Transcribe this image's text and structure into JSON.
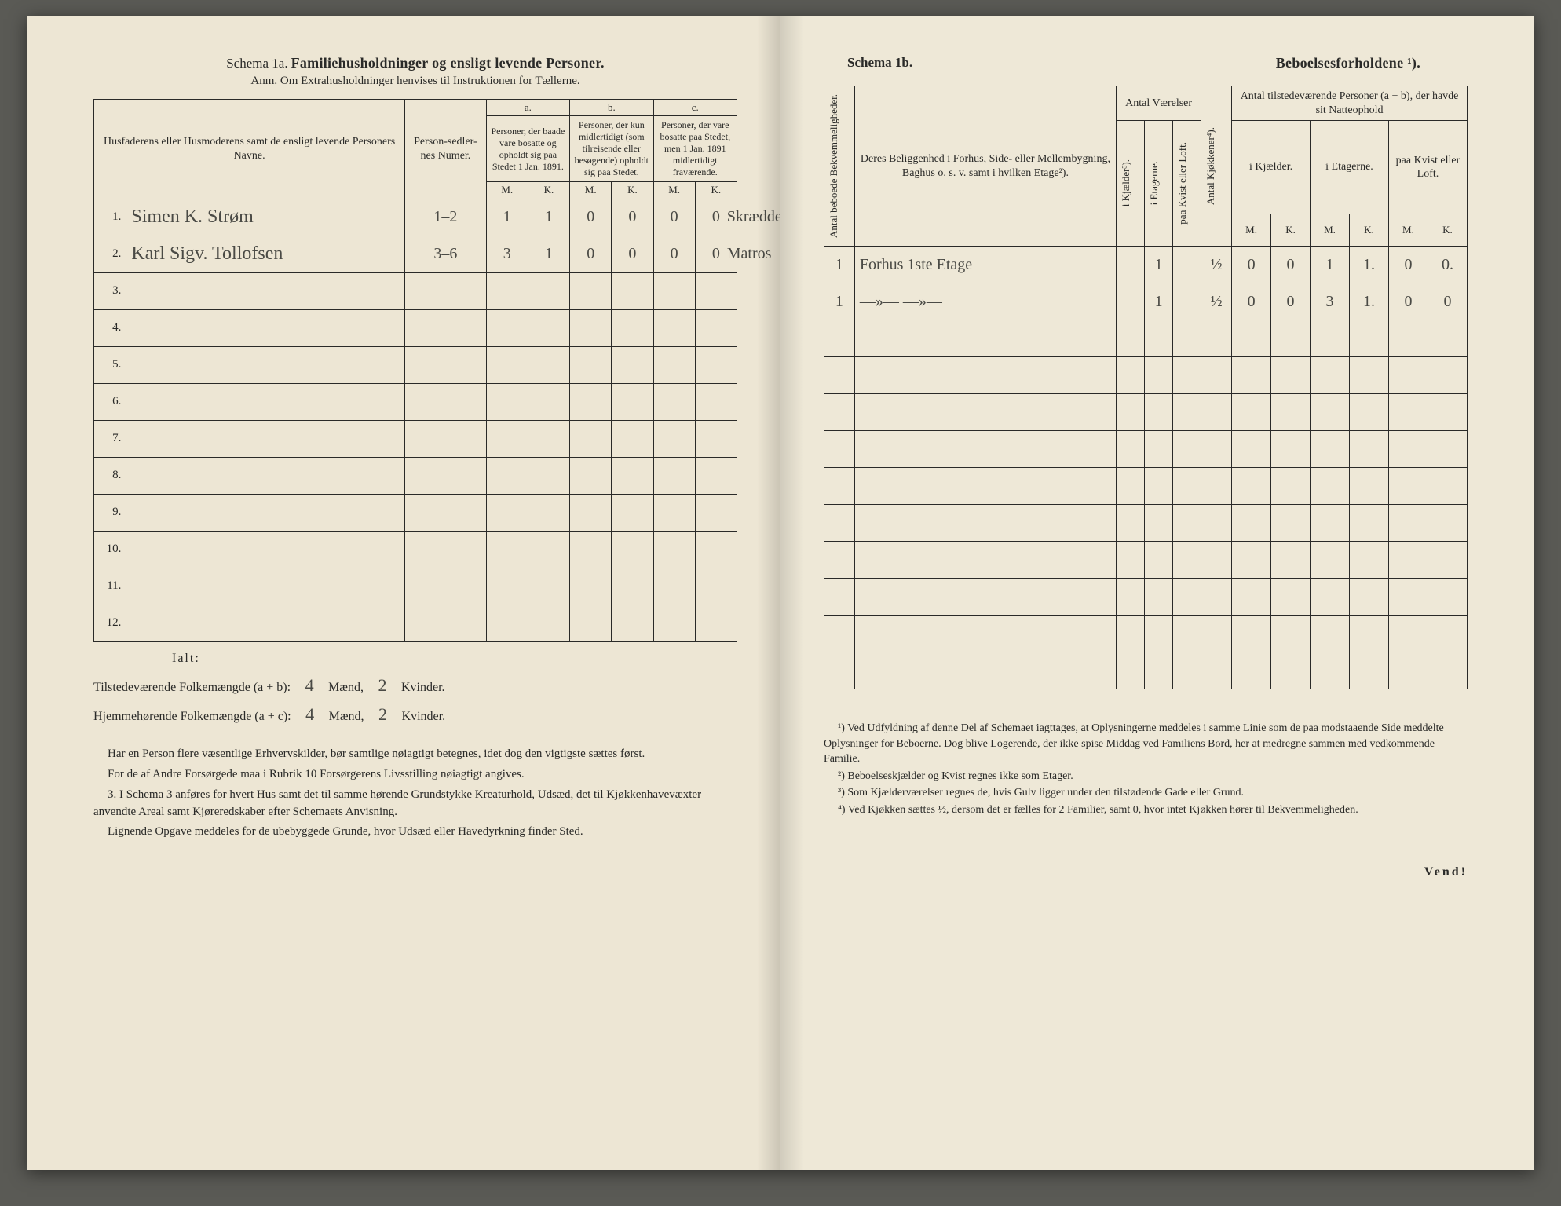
{
  "left": {
    "schema_label": "Schema 1a.",
    "schema_title": "Familiehusholdninger og ensligt levende Personer.",
    "anm": "Anm. Om Extrahusholdninger henvises til Instruktionen for Tællerne.",
    "headers": {
      "name": "Husfaderens eller Husmoderens samt de ensligt levende Personers Navne.",
      "person_num": "Person-sedler-nes Numer.",
      "a_label": "a.",
      "a_text": "Personer, der baade vare bosatte og opholdt sig paa Stedet 1 Jan. 1891.",
      "b_label": "b.",
      "b_text": "Personer, der kun midlertidigt (som tilreisende eller besøgende) opholdt sig paa Stedet.",
      "c_label": "c.",
      "c_text": "Personer, der vare bosatte paa Stedet, men 1 Jan. 1891 midlertidigt fraværende.",
      "M": "M.",
      "K": "K."
    },
    "rows": [
      {
        "n": "1.",
        "name": "Simen K. Strøm",
        "pn": "1–2",
        "aM": "1",
        "aK": "1",
        "bM": "0",
        "bK": "0",
        "cM": "0",
        "cK": "0",
        "note": "Skræddermester"
      },
      {
        "n": "2.",
        "name": "Karl Sigv. Tollofsen",
        "pn": "3–6",
        "aM": "3",
        "aK": "1",
        "bM": "0",
        "bK": "0",
        "cM": "0",
        "cK": "0",
        "note": "Matros"
      },
      {
        "n": "3.",
        "name": "",
        "pn": "",
        "aM": "",
        "aK": "",
        "bM": "",
        "bK": "",
        "cM": "",
        "cK": "",
        "note": ""
      },
      {
        "n": "4.",
        "name": "",
        "pn": "",
        "aM": "",
        "aK": "",
        "bM": "",
        "bK": "",
        "cM": "",
        "cK": "",
        "note": ""
      },
      {
        "n": "5.",
        "name": "",
        "pn": "",
        "aM": "",
        "aK": "",
        "bM": "",
        "bK": "",
        "cM": "",
        "cK": "",
        "note": ""
      },
      {
        "n": "6.",
        "name": "",
        "pn": "",
        "aM": "",
        "aK": "",
        "bM": "",
        "bK": "",
        "cM": "",
        "cK": "",
        "note": ""
      },
      {
        "n": "7.",
        "name": "",
        "pn": "",
        "aM": "",
        "aK": "",
        "bM": "",
        "bK": "",
        "cM": "",
        "cK": "",
        "note": ""
      },
      {
        "n": "8.",
        "name": "",
        "pn": "",
        "aM": "",
        "aK": "",
        "bM": "",
        "bK": "",
        "cM": "",
        "cK": "",
        "note": ""
      },
      {
        "n": "9.",
        "name": "",
        "pn": "",
        "aM": "",
        "aK": "",
        "bM": "",
        "bK": "",
        "cM": "",
        "cK": "",
        "note": ""
      },
      {
        "n": "10.",
        "name": "",
        "pn": "",
        "aM": "",
        "aK": "",
        "bM": "",
        "bK": "",
        "cM": "",
        "cK": "",
        "note": ""
      },
      {
        "n": "11.",
        "name": "",
        "pn": "",
        "aM": "",
        "aK": "",
        "bM": "",
        "bK": "",
        "cM": "",
        "cK": "",
        "note": ""
      },
      {
        "n": "12.",
        "name": "",
        "pn": "",
        "aM": "",
        "aK": "",
        "bM": "",
        "bK": "",
        "cM": "",
        "cK": "",
        "note": ""
      }
    ],
    "ialt": "Ialt:",
    "sum1_label": "Tilstedeværende Folkemængde (a + b):",
    "sum1_m": "4",
    "sum1_mw": "Mænd,",
    "sum1_k": "2",
    "sum1_kw": "Kvinder.",
    "sum2_label": "Hjemmehørende Folkemængde (a + c):",
    "sum2_m": "4",
    "sum2_mw": "Mænd,",
    "sum2_k": "2",
    "sum2_kw": "Kvinder.",
    "notes": [
      "Har en Person flere væsentlige Erhvervskilder, bør samtlige nøiagtigt betegnes, idet dog den vigtigste sættes først.",
      "For de af Andre Forsørgede maa i Rubrik 10 Forsørgerens Livsstilling nøiagtigt angives.",
      "3. I Schema 3 anføres for hvert Hus samt det til samme hørende Grundstykke Kreaturhold, Udsæd, det til Kjøkkenhavevæxter anvendte Areal samt Kjøreredskaber efter Schemaets Anvisning.",
      "Lignende Opgave meddeles for de ubebyggede Grunde, hvor Udsæd eller Havedyrkning finder Sted."
    ]
  },
  "right": {
    "schema_label": "Schema 1b.",
    "schema_title": "Beboelsesforholdene ¹).",
    "headers": {
      "antal_bek": "Antal beboede Bekvemmeligheder.",
      "belig": "Deres Beliggenhed i Forhus, Side- eller Mellembygning, Baghus o. s. v. samt i hvilken Etage²).",
      "vaer": "Antal Værelser",
      "kj": "i Kjælder³).",
      "et": "i Etagerne.",
      "kvist": "paa Kvist eller Loft.",
      "kjokkener": "Antal Kjøkkener⁴).",
      "personer": "Antal tilstedeværende Personer (a + b), der havde sit Natteophold",
      "ikj": "i Kjælder.",
      "iet": "i Etagerne.",
      "paak": "paa Kvist eller Loft.",
      "M": "M.",
      "K": "K."
    },
    "rows": [
      {
        "bek": "1",
        "belig": "Forhus 1ste Etage",
        "kj": "",
        "et": "1",
        "kv": "",
        "kk": "½",
        "kjM": "0",
        "kjK": "0",
        "etM": "1",
        "etK": "1.",
        "kvM": "0",
        "kvK": "0."
      },
      {
        "bek": "1",
        "belig": "—»—    —»—",
        "kj": "",
        "et": "1",
        "kv": "",
        "kk": "½",
        "kjM": "0",
        "kjK": "0",
        "etM": "3",
        "etK": "1.",
        "kvM": "0",
        "kvK": "0"
      },
      {
        "bek": "",
        "belig": "",
        "kj": "",
        "et": "",
        "kv": "",
        "kk": "",
        "kjM": "",
        "kjK": "",
        "etM": "",
        "etK": "",
        "kvM": "",
        "kvK": ""
      },
      {
        "bek": "",
        "belig": "",
        "kj": "",
        "et": "",
        "kv": "",
        "kk": "",
        "kjM": "",
        "kjK": "",
        "etM": "",
        "etK": "",
        "kvM": "",
        "kvK": ""
      },
      {
        "bek": "",
        "belig": "",
        "kj": "",
        "et": "",
        "kv": "",
        "kk": "",
        "kjM": "",
        "kjK": "",
        "etM": "",
        "etK": "",
        "kvM": "",
        "kvK": ""
      },
      {
        "bek": "",
        "belig": "",
        "kj": "",
        "et": "",
        "kv": "",
        "kk": "",
        "kjM": "",
        "kjK": "",
        "etM": "",
        "etK": "",
        "kvM": "",
        "kvK": ""
      },
      {
        "bek": "",
        "belig": "",
        "kj": "",
        "et": "",
        "kv": "",
        "kk": "",
        "kjM": "",
        "kjK": "",
        "etM": "",
        "etK": "",
        "kvM": "",
        "kvK": ""
      },
      {
        "bek": "",
        "belig": "",
        "kj": "",
        "et": "",
        "kv": "",
        "kk": "",
        "kjM": "",
        "kjK": "",
        "etM": "",
        "etK": "",
        "kvM": "",
        "kvK": ""
      },
      {
        "bek": "",
        "belig": "",
        "kj": "",
        "et": "",
        "kv": "",
        "kk": "",
        "kjM": "",
        "kjK": "",
        "etM": "",
        "etK": "",
        "kvM": "",
        "kvK": ""
      },
      {
        "bek": "",
        "belig": "",
        "kj": "",
        "et": "",
        "kv": "",
        "kk": "",
        "kjM": "",
        "kjK": "",
        "etM": "",
        "etK": "",
        "kvM": "",
        "kvK": ""
      },
      {
        "bek": "",
        "belig": "",
        "kj": "",
        "et": "",
        "kv": "",
        "kk": "",
        "kjM": "",
        "kjK": "",
        "etM": "",
        "etK": "",
        "kvM": "",
        "kvK": ""
      },
      {
        "bek": "",
        "belig": "",
        "kj": "",
        "et": "",
        "kv": "",
        "kk": "",
        "kjM": "",
        "kjK": "",
        "etM": "",
        "etK": "",
        "kvM": "",
        "kvK": ""
      }
    ],
    "footnotes": [
      "¹) Ved Udfyldning af denne Del af Schemaet iagttages, at Oplysningerne meddeles i samme Linie som de paa modstaaende Side meddelte Oplysninger for Beboerne. Dog blive Logerende, der ikke spise Middag ved Familiens Bord, her at medregne sammen med vedkommende Familie.",
      "²) Beboelseskjælder og Kvist regnes ikke som Etager.",
      "³) Som Kjælderværelser regnes de, hvis Gulv ligger under den tilstødende Gade eller Grund.",
      "⁴) Ved Kjøkken sættes ½, dersom det er fælles for 2 Familier, samt 0, hvor intet Kjøkken hører til Bekvemmeligheden."
    ],
    "vend": "Vend!"
  },
  "style": {
    "paper_bg": "#ede6d4",
    "ink": "#2a2a28",
    "handwriting": "#4a4a45"
  }
}
